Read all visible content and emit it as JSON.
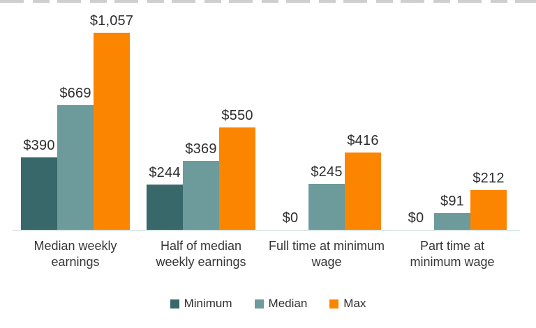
{
  "chart_data": {
    "type": "bar",
    "title": "",
    "categories": [
      "Median weekly earnings",
      "Half of median weekly earnings",
      "Full time at minimum wage",
      "Part time at minimum wage"
    ],
    "categories_display": [
      "Median weekly\nearnings",
      "Half of median\nweekly earnings",
      "Full time at minimum\nwage",
      "Part time at\nminimum wage"
    ],
    "series": [
      {
        "name": "Minimum",
        "color": "#38686a",
        "values": [
          390,
          244,
          0,
          0
        ],
        "labels": [
          "$390",
          "$244",
          "$0",
          "$0"
        ]
      },
      {
        "name": "Median",
        "color": "#6d9a9a",
        "values": [
          669,
          369,
          245,
          91
        ],
        "labels": [
          "$669",
          "$369",
          "$245",
          "$91"
        ]
      },
      {
        "name": "Max",
        "color": "#fc8500",
        "values": [
          1057,
          550,
          416,
          212
        ],
        "labels": [
          "$1,057",
          "$550",
          "$416",
          "$212"
        ]
      }
    ],
    "ylim": [
      0,
      1057
    ],
    "grid": false,
    "legend_position": "bottom",
    "axis_line_color": "#dde9e9",
    "text_color": "#2e2e2e"
  }
}
